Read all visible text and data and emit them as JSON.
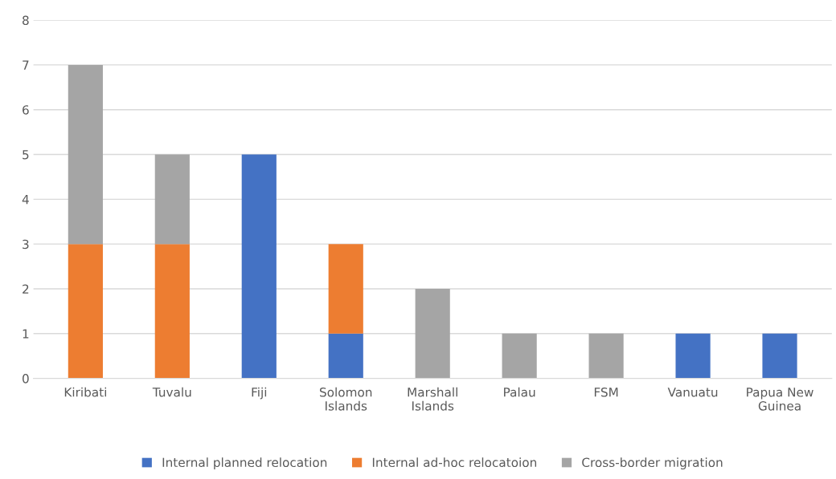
{
  "chart_data": {
    "type": "bar",
    "stacked": true,
    "categories": [
      "Kiribati",
      "Tuvalu",
      "Fiji",
      "Solomon\nIslands",
      "Marshall\nIslands",
      "Palau",
      "FSM",
      "Vanuatu",
      "Papua New\nGuinea"
    ],
    "series": [
      {
        "name": "Internal planned relocation",
        "color": "#4472c4",
        "values": [
          0,
          0,
          5,
          1,
          0,
          0,
          0,
          1,
          1
        ]
      },
      {
        "name": "Internal ad-hoc relocatoion",
        "color": "#ed7d31",
        "values": [
          3,
          3,
          0,
          2,
          0,
          0,
          0,
          0,
          0
        ]
      },
      {
        "name": "Cross-border migration",
        "color": "#a5a5a5",
        "values": [
          4,
          2,
          0,
          0,
          2,
          1,
          1,
          0,
          0
        ]
      }
    ],
    "ylim": [
      0,
      8
    ],
    "yticks": [
      0,
      1,
      2,
      3,
      4,
      5,
      6,
      7,
      8
    ],
    "grid": "y",
    "legend": "bottom"
  }
}
